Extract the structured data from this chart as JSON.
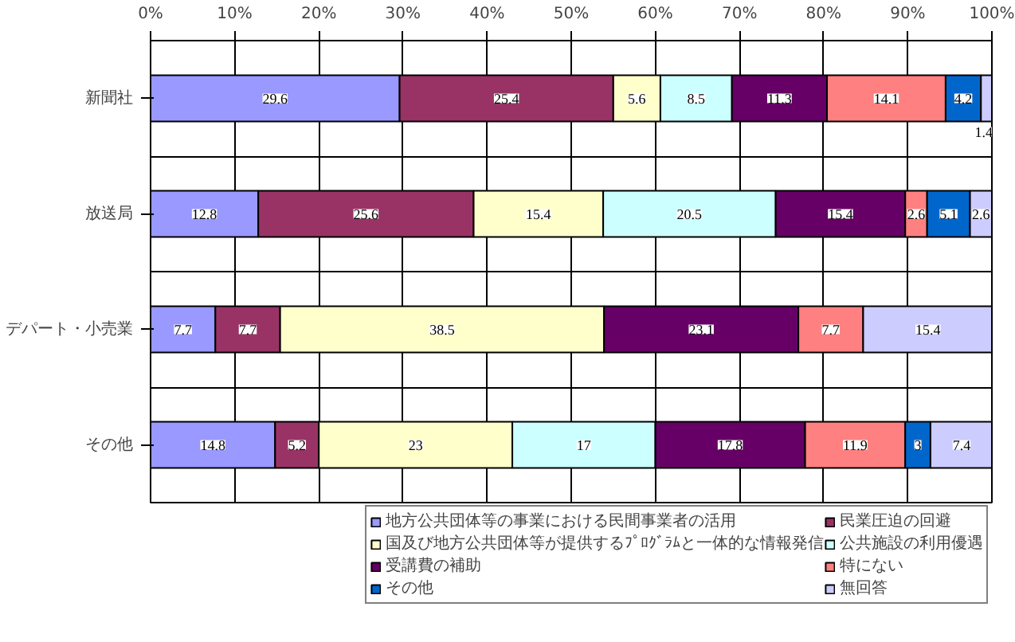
{
  "chart_data": {
    "type": "bar",
    "orientation": "horizontal",
    "stacked": true,
    "data_labels": true,
    "grid": true,
    "legend": "bottom",
    "categories": [
      "新聞社",
      "放送局",
      "デパート・小売業",
      "その他"
    ],
    "xlim": [
      0,
      100
    ],
    "xticks": [
      {
        "value": 0,
        "label": "0%"
      },
      {
        "value": 10,
        "label": "10%"
      },
      {
        "value": 20,
        "label": "20%"
      },
      {
        "value": 30,
        "label": "30%"
      },
      {
        "value": 40,
        "label": "40%"
      },
      {
        "value": 50,
        "label": "50%"
      },
      {
        "value": 60,
        "label": "60%"
      },
      {
        "value": 70,
        "label": "70%"
      },
      {
        "value": 80,
        "label": "80%"
      },
      {
        "value": 90,
        "label": "90%"
      },
      {
        "value": 100,
        "label": "100%"
      }
    ],
    "series": [
      {
        "name": "地方公共団体等の事業における民間事業者の活用",
        "color": "#9999ff",
        "values": [
          29.6,
          12.8,
          7.7,
          14.8
        ]
      },
      {
        "name": "民業圧迫の回避",
        "color": "#993366",
        "values": [
          25.4,
          25.6,
          7.7,
          5.2
        ]
      },
      {
        "name": "国及び地方公共団体等が提供するﾌﾟﾛｸﾞﾗﾑと一体的な情報発信",
        "color": "#ffffcc",
        "values": [
          5.6,
          15.4,
          38.5,
          23
        ]
      },
      {
        "name": "公共施設の利用優遇",
        "color": "#ccffff",
        "values": [
          8.5,
          20.5,
          null,
          17
        ]
      },
      {
        "name": "受講費の補助",
        "color": "#660066",
        "values": [
          11.3,
          15.4,
          23.1,
          17.8
        ]
      },
      {
        "name": "特にない",
        "color": "#ff8080",
        "values": [
          14.1,
          2.6,
          7.7,
          11.9
        ]
      },
      {
        "name": "その他",
        "color": "#0066cc",
        "values": [
          4.2,
          5.1,
          null,
          3
        ]
      },
      {
        "name": "無回答",
        "color": "#ccccff",
        "values": [
          1.4,
          2.6,
          15.4,
          7.4
        ]
      }
    ]
  }
}
